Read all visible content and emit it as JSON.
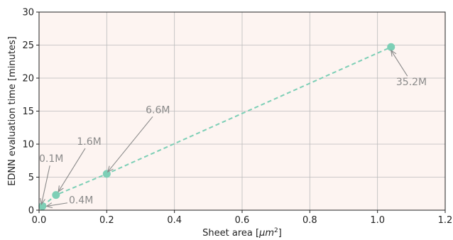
{
  "chart_data": {
    "type": "line",
    "xlabel_prefix": "Sheet area [",
    "xlabel_unit_base": "μm",
    "xlabel_unit_exp": "2",
    "xlabel_suffix": "]",
    "ylabel": "EDNN evaluation time [minutes]",
    "xlim": [
      0,
      1.2
    ],
    "ylim": [
      0,
      30
    ],
    "x_ticks": [
      0.0,
      0.2,
      0.4,
      0.6,
      0.8,
      1.0,
      1.2
    ],
    "x_tick_labels": [
      "0.0",
      "0.2",
      "0.4",
      "0.6",
      "0.8",
      "1.0",
      "1.2"
    ],
    "y_ticks": [
      0,
      5,
      10,
      15,
      20,
      25,
      30
    ],
    "y_tick_labels": [
      "0",
      "5",
      "10",
      "15",
      "20",
      "25",
      "30"
    ],
    "grid": true,
    "series": [
      {
        "x": [
          0.01,
          0.05,
          0.2,
          1.04
        ],
        "y": [
          0.6,
          2.3,
          5.5,
          24.7
        ],
        "style": "dashed",
        "color": "#7dcfb6"
      }
    ],
    "annotations": [
      {
        "text": "0.1M",
        "text_x": 0.0,
        "text_y": 7.3,
        "point_x": 0.007,
        "point_y": 0.9
      },
      {
        "text": "0.4M",
        "text_x": 0.088,
        "text_y": 1.0,
        "point_x": 0.022,
        "point_y": 0.6
      },
      {
        "text": "1.6M",
        "text_x": 0.112,
        "text_y": 9.9,
        "point_x": 0.057,
        "point_y": 2.8
      },
      {
        "text": "6.6M",
        "text_x": 0.315,
        "text_y": 14.7,
        "point_x": 0.203,
        "point_y": 5.8
      },
      {
        "text": "35.2M",
        "text_x": 1.055,
        "text_y": 18.9,
        "point_x": 1.04,
        "point_y": 24.2
      }
    ]
  },
  "colors": {
    "plot_background": "#fdf4f1",
    "grid": "#bbbbbb",
    "line": "#7dcfb6",
    "marker": "#7dcfb6",
    "annotation": "#8a8a8a",
    "axis": "#222222"
  }
}
